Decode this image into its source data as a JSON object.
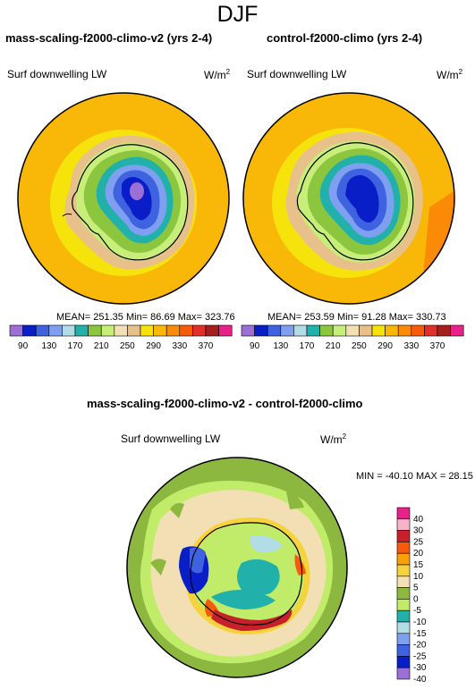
{
  "page": {
    "title": "DJF"
  },
  "panels": [
    {
      "title": "mass-scaling-f2000-climo-v2 (yrs 2-4)",
      "variable": "Surf downwelling LW",
      "units": "W/m",
      "units_exp": "2",
      "stats": "MEAN= 251.35  Min=  86.69  Max= 323.76"
    },
    {
      "title": "control-f2000-climo (yrs 2-4)",
      "variable": "Surf downwelling LW",
      "units": "W/m",
      "units_exp": "2",
      "stats": "MEAN= 253.59  Min=  91.28  Max= 330.73"
    }
  ],
  "diff": {
    "title": "mass-scaling-f2000-climo-v2 - control-f2000-climo",
    "variable": "Surf downwelling LW",
    "units": "W/m",
    "units_exp": "2",
    "stats": "MIN = -40.10 MAX =  28.15"
  },
  "colorbar_main": {
    "labels": [
      "90",
      "130",
      "170",
      "210",
      "250",
      "290",
      "330",
      "370"
    ],
    "colors": [
      "#9b6fd6",
      "#0a1ec8",
      "#3f62e0",
      "#7f9ff0",
      "#b2dde6",
      "#22b0aa",
      "#8cc63f",
      "#c8ee7a",
      "#f2dfb3",
      "#e8c08a",
      "#f6e30c",
      "#f9b808",
      "#fb8a06",
      "#f75a0a",
      "#e0302a",
      "#a51f1f",
      "#e8208a"
    ]
  },
  "colorbar_diff": {
    "labels": [
      "40",
      "30",
      "25",
      "20",
      "15",
      "10",
      "5",
      "0",
      "-5",
      "-10",
      "-15",
      "-20",
      "-25",
      "-30",
      "-40"
    ],
    "colors": [
      "#e8208a",
      "#f9b3c8",
      "#c8202a",
      "#f75a0a",
      "#f9a008",
      "#f6d23c",
      "#f2dfb3",
      "#8cb83f",
      "#c0ec6a",
      "#22b0aa",
      "#b2dde6",
      "#7f9ff0",
      "#3f62e0",
      "#0a1ec8",
      "#9b6fd6"
    ]
  }
}
